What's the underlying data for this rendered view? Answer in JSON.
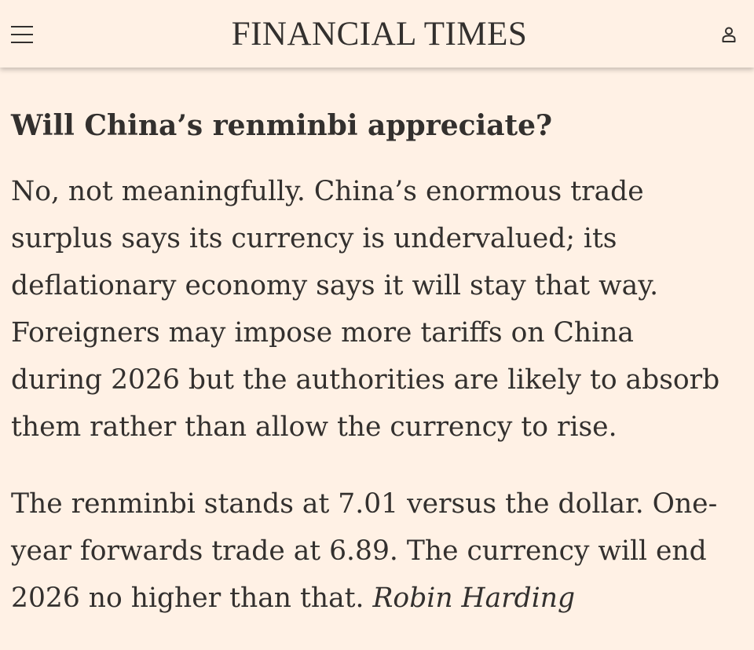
{
  "header": {
    "menu_icon": "hamburger-menu-icon",
    "masthead": "FINANCIAL TIMES",
    "account_icon": "user-account-icon"
  },
  "article": {
    "question": "Will China’s renminbi appreciate?",
    "paragraph1": {
      "lines": [
        "No, not meaningfully. China’s enormous trade",
        "surplus says its currency is undervalued; its",
        "deflationary economy says it will stay that way.",
        "Foreigners may impose more tariffs on China",
        "during 2026 but the authorities are likely to absorb",
        "them rather than allow the currency to rise."
      ]
    },
    "paragraph2": {
      "lines": [
        "The renminbi stands at 7.01 versus the dollar. One-",
        "year forwards trade at 6.89. The currency will end",
        "2026 no higher than that."
      ],
      "byline": "Robin Harding"
    }
  },
  "colors": {
    "background": "#fff1e5",
    "text": "#33302e"
  }
}
